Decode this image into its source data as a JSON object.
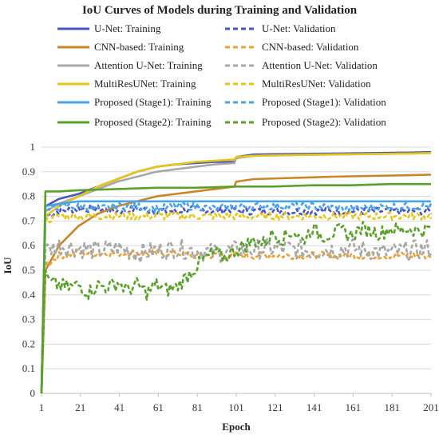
{
  "chart_data": {
    "type": "line",
    "title": "IoU Curves of Models during Training and Validation",
    "xlabel": "Epoch",
    "ylabel": "IoU",
    "xlim": [
      1,
      201
    ],
    "ylim": [
      0,
      1
    ],
    "x_ticks": [
      "1",
      "21",
      "41",
      "61",
      "81",
      "101",
      "121",
      "141",
      "161",
      "181",
      "201"
    ],
    "y_ticks": [
      "0",
      "0.1",
      "0.2",
      "0.3",
      "0.4",
      "0.5",
      "0.6",
      "0.7",
      "0.8",
      "0.9",
      "1"
    ],
    "grid": "horizontal",
    "legend_position": "top",
    "series": [
      {
        "name": "U-Net: Training",
        "color": "#4a56c0",
        "dash": "solid",
        "x": [
          1,
          3,
          10,
          20,
          30,
          40,
          50,
          60,
          70,
          80,
          90,
          100,
          101,
          110,
          130,
          150,
          170,
          190,
          201
        ],
        "y": [
          0.0,
          0.76,
          0.79,
          0.81,
          0.84,
          0.87,
          0.9,
          0.92,
          0.93,
          0.935,
          0.94,
          0.94,
          0.96,
          0.97,
          0.972,
          0.974,
          0.976,
          0.978,
          0.98
        ]
      },
      {
        "name": "U-Net: Validation",
        "color": "#4a56c0",
        "dash": "dashed",
        "x": [
          1,
          3,
          10,
          20,
          30,
          40,
          50,
          60,
          70,
          80,
          90,
          100,
          101,
          120,
          140,
          160,
          180,
          201
        ],
        "y": [
          0.0,
          0.72,
          0.74,
          0.75,
          0.75,
          0.74,
          0.75,
          0.74,
          0.74,
          0.75,
          0.74,
          0.75,
          0.74,
          0.74,
          0.74,
          0.74,
          0.74,
          0.74
        ]
      },
      {
        "name": "CNN-based: Training",
        "color": "#c8862a",
        "dash": "solid",
        "x": [
          1,
          3,
          10,
          20,
          30,
          40,
          50,
          60,
          70,
          80,
          90,
          100,
          101,
          110,
          130,
          150,
          170,
          190,
          201
        ],
        "y": [
          0.0,
          0.5,
          0.6,
          0.68,
          0.73,
          0.76,
          0.78,
          0.8,
          0.81,
          0.82,
          0.83,
          0.84,
          0.86,
          0.87,
          0.875,
          0.88,
          0.883,
          0.886,
          0.888
        ]
      },
      {
        "name": "CNN-based: Validation",
        "color": "#e8a33a",
        "dash": "dashed",
        "x": [
          1,
          3,
          10,
          20,
          30,
          40,
          50,
          60,
          70,
          80,
          90,
          100,
          120,
          140,
          160,
          180,
          201
        ],
        "y": [
          0.0,
          0.52,
          0.56,
          0.57,
          0.57,
          0.57,
          0.57,
          0.57,
          0.57,
          0.56,
          0.56,
          0.56,
          0.56,
          0.56,
          0.56,
          0.56,
          0.56
        ]
      },
      {
        "name": "Attention U-Net: Training",
        "color": "#a8a8a8",
        "dash": "solid",
        "x": [
          1,
          3,
          10,
          20,
          30,
          40,
          50,
          60,
          70,
          80,
          90,
          100,
          101,
          110,
          130,
          150,
          170,
          190,
          201
        ],
        "y": [
          0.0,
          0.74,
          0.77,
          0.8,
          0.83,
          0.86,
          0.88,
          0.9,
          0.91,
          0.92,
          0.93,
          0.935,
          0.955,
          0.965,
          0.968,
          0.97,
          0.972,
          0.974,
          0.976
        ]
      },
      {
        "name": "Attention U-Net: Validation",
        "color": "#a8a8a8",
        "dash": "dashed",
        "x": [
          1,
          3,
          10,
          20,
          30,
          40,
          50,
          60,
          70,
          80,
          90,
          100,
          120,
          140,
          160,
          180,
          201
        ],
        "y": [
          0.0,
          0.58,
          0.6,
          0.59,
          0.58,
          0.59,
          0.57,
          0.58,
          0.59,
          0.58,
          0.57,
          0.58,
          0.59,
          0.58,
          0.59,
          0.57,
          0.59
        ]
      },
      {
        "name": "MultiResUNet: Training",
        "color": "#e6c619",
        "dash": "solid",
        "x": [
          1,
          3,
          10,
          20,
          30,
          40,
          50,
          60,
          70,
          80,
          90,
          100,
          101,
          110,
          130,
          150,
          170,
          190,
          201
        ],
        "y": [
          0.0,
          0.72,
          0.76,
          0.8,
          0.84,
          0.87,
          0.9,
          0.92,
          0.93,
          0.94,
          0.945,
          0.95,
          0.96,
          0.965,
          0.968,
          0.97,
          0.972,
          0.974,
          0.976
        ]
      },
      {
        "name": "MultiResUNet: Validation",
        "color": "#e6c619",
        "dash": "dashed",
        "x": [
          1,
          3,
          10,
          20,
          30,
          40,
          50,
          60,
          70,
          80,
          90,
          100,
          120,
          140,
          160,
          180,
          201
        ],
        "y": [
          0.0,
          0.7,
          0.72,
          0.72,
          0.72,
          0.72,
          0.72,
          0.72,
          0.72,
          0.72,
          0.72,
          0.72,
          0.72,
          0.72,
          0.72,
          0.72,
          0.72
        ]
      },
      {
        "name": "Proposed (Stage1): Training",
        "color": "#4aa3e8",
        "dash": "solid",
        "x": [
          1,
          3,
          10,
          20,
          40,
          60,
          80,
          100,
          120,
          140,
          160,
          180,
          201
        ],
        "y": [
          0.0,
          0.76,
          0.77,
          0.78,
          0.78,
          0.78,
          0.78,
          0.78,
          0.78,
          0.78,
          0.78,
          0.78,
          0.78
        ]
      },
      {
        "name": "Proposed (Stage1): Validation",
        "color": "#4aa3e8",
        "dash": "dashed",
        "x": [
          1,
          3,
          10,
          20,
          30,
          40,
          50,
          60,
          70,
          80,
          90,
          100,
          120,
          140,
          160,
          180,
          201
        ],
        "y": [
          0.0,
          0.74,
          0.76,
          0.76,
          0.75,
          0.76,
          0.76,
          0.75,
          0.76,
          0.76,
          0.75,
          0.76,
          0.76,
          0.76,
          0.75,
          0.76,
          0.76
        ]
      },
      {
        "name": "Proposed (Stage2): Training",
        "color": "#5aa02c",
        "dash": "solid",
        "x": [
          1,
          3,
          10,
          20,
          40,
          60,
          80,
          100,
          120,
          140,
          160,
          180,
          201
        ],
        "y": [
          0.0,
          0.82,
          0.82,
          0.825,
          0.83,
          0.835,
          0.835,
          0.84,
          0.84,
          0.845,
          0.845,
          0.85,
          0.85
        ]
      },
      {
        "name": "Proposed (Stage2): Validation",
        "color": "#5aa02c",
        "dash": "dashed",
        "x": [
          1,
          3,
          5,
          10,
          15,
          20,
          25,
          30,
          35,
          40,
          45,
          50,
          55,
          60,
          65,
          70,
          75,
          80,
          85,
          90,
          95,
          100,
          105,
          110,
          115,
          120,
          125,
          130,
          135,
          140,
          145,
          150,
          155,
          160,
          165,
          170,
          175,
          180,
          185,
          190,
          195,
          201
        ],
        "y": [
          0.0,
          0.5,
          0.45,
          0.44,
          0.43,
          0.44,
          0.41,
          0.44,
          0.43,
          0.45,
          0.42,
          0.44,
          0.41,
          0.44,
          0.42,
          0.43,
          0.47,
          0.51,
          0.55,
          0.57,
          0.55,
          0.58,
          0.6,
          0.62,
          0.61,
          0.65,
          0.63,
          0.66,
          0.62,
          0.67,
          0.64,
          0.65,
          0.66,
          0.64,
          0.67,
          0.66,
          0.65,
          0.67,
          0.66,
          0.67,
          0.66,
          0.67
        ]
      }
    ]
  }
}
